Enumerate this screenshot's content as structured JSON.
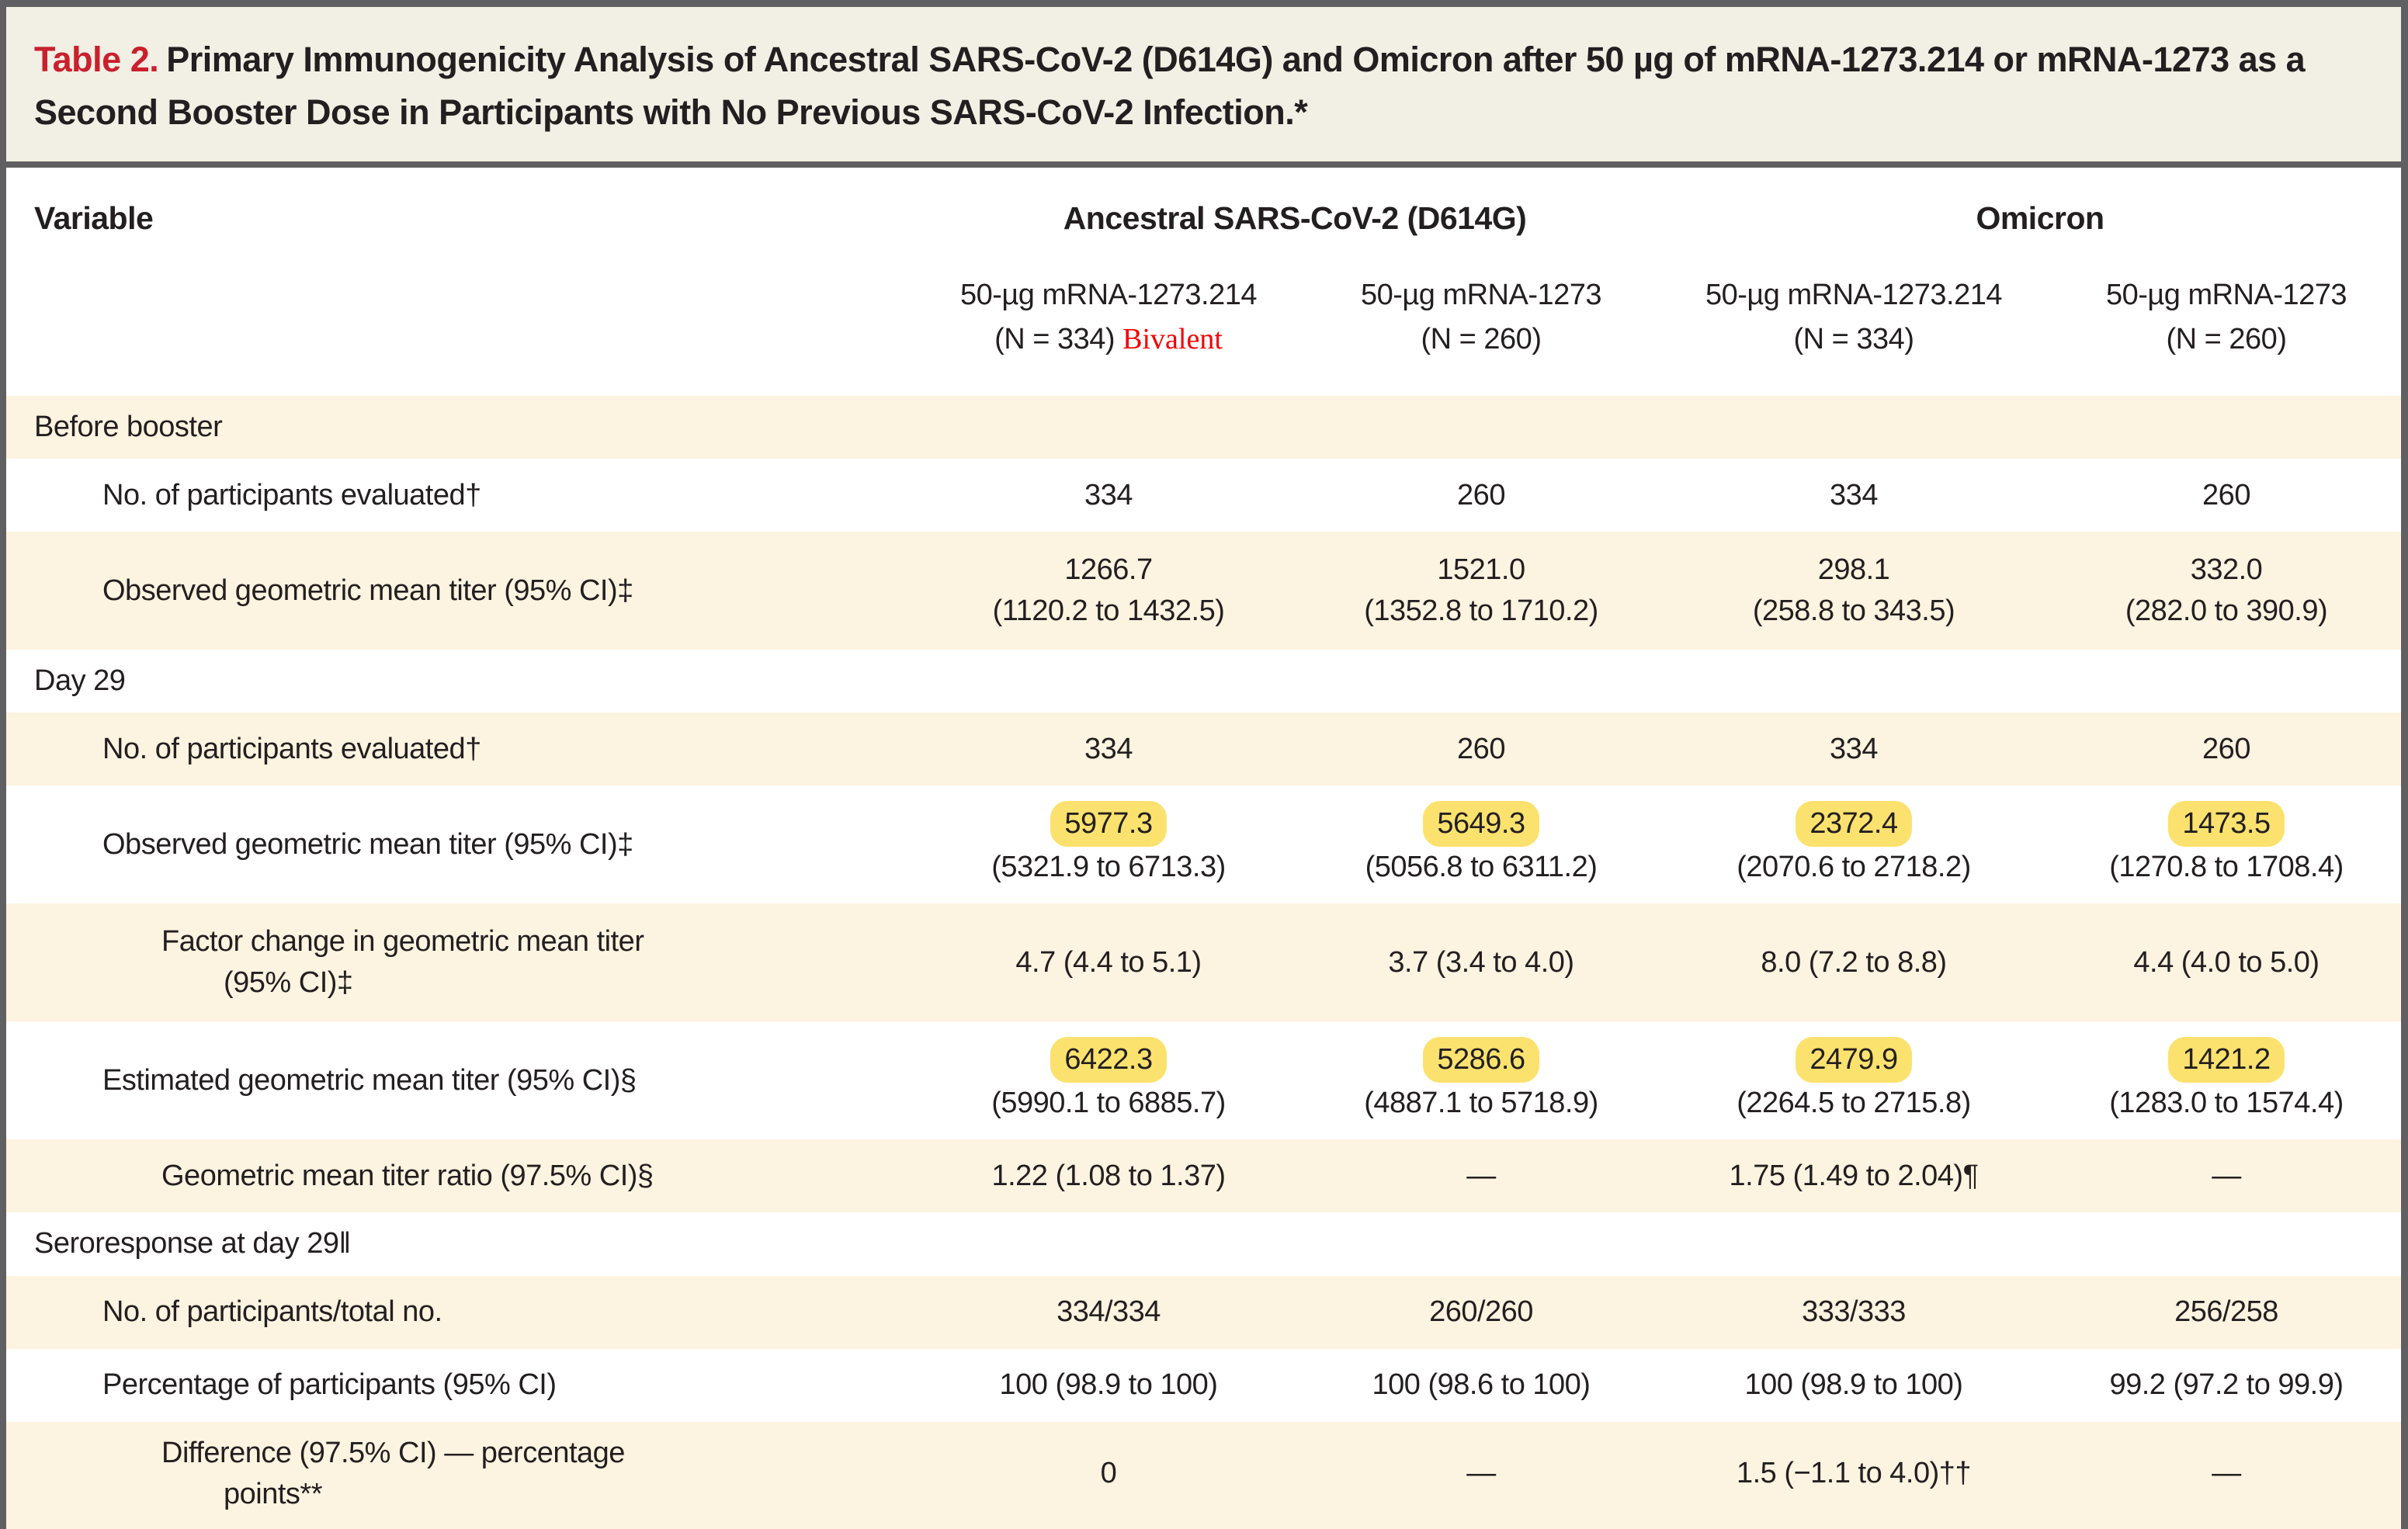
{
  "title": {
    "label": "Table 2.",
    "text": "Primary Immunogenicity Analysis of Ancestral SARS-CoV-2 (D614G) and Omicron after 50 µg of mRNA-1273.214 or mRNA-1273 as a Second Booster Dose in Participants with No Previous SARS-CoV-2 Infection.*"
  },
  "header": {
    "variable": "Variable",
    "groups": [
      {
        "label": "Ancestral SARS-CoV-2 (D614G)",
        "span": 2
      },
      {
        "label": "Omicron",
        "span": 2
      }
    ],
    "columns": [
      {
        "line1": "50-µg mRNA-1273.214",
        "line2": "(N = 334)",
        "annotation": "Bivalent"
      },
      {
        "line1": "50-µg mRNA-1273",
        "line2": "(N = 260)",
        "annotation": ""
      },
      {
        "line1": "50-µg mRNA-1273.214",
        "line2": "(N = 334)",
        "annotation": ""
      },
      {
        "line1": "50-µg mRNA-1273",
        "line2": "(N = 260)",
        "annotation": ""
      }
    ]
  },
  "rows": [
    {
      "type": "section",
      "label_lines": [
        "Before booster"
      ],
      "cells": []
    },
    {
      "type": "data",
      "indent": 1,
      "label_lines": [
        "No. of participants evaluated†"
      ],
      "cells": [
        {
          "main": "334"
        },
        {
          "main": "260"
        },
        {
          "main": "334"
        },
        {
          "main": "260"
        }
      ]
    },
    {
      "type": "data",
      "indent": 1,
      "label_lines": [
        "Observed geometric mean titer (95% CI)‡"
      ],
      "cells": [
        {
          "main": "1266.7",
          "sub": "(1120.2 to 1432.5)"
        },
        {
          "main": "1521.0",
          "sub": "(1352.8 to 1710.2)"
        },
        {
          "main": "298.1",
          "sub": "(258.8 to 343.5)"
        },
        {
          "main": "332.0",
          "sub": "(282.0 to 390.9)"
        }
      ]
    },
    {
      "type": "section",
      "label_lines": [
        "Day 29"
      ],
      "cells": []
    },
    {
      "type": "data",
      "indent": 1,
      "label_lines": [
        "No. of participants evaluated†"
      ],
      "cells": [
        {
          "main": "334"
        },
        {
          "main": "260"
        },
        {
          "main": "334"
        },
        {
          "main": "260"
        }
      ]
    },
    {
      "type": "data",
      "indent": 1,
      "label_lines": [
        "Observed geometric mean titer (95% CI)‡"
      ],
      "cells": [
        {
          "main": "5977.3",
          "highlight": true,
          "sub": "(5321.9 to 6713.3)"
        },
        {
          "main": "5649.3",
          "highlight": true,
          "sub": "(5056.8 to 6311.2)"
        },
        {
          "main": "2372.4",
          "highlight": true,
          "sub": "(2070.6 to 2718.2)"
        },
        {
          "main": "1473.5",
          "highlight": true,
          "sub": "(1270.8 to 1708.4)"
        }
      ]
    },
    {
      "type": "data",
      "indent": 2,
      "label_lines": [
        "Factor change in geometric mean titer",
        "(95% CI)‡"
      ],
      "cells": [
        {
          "main": "4.7 (4.4 to 5.1)"
        },
        {
          "main": "3.7 (3.4 to 4.0)"
        },
        {
          "main": "8.0 (7.2 to 8.8)"
        },
        {
          "main": "4.4 (4.0 to 5.0)"
        }
      ]
    },
    {
      "type": "data",
      "indent": 1,
      "label_lines": [
        "Estimated geometric mean titer (95% CI)§"
      ],
      "cells": [
        {
          "main": "6422.3",
          "highlight": true,
          "sub": "(5990.1 to 6885.7)"
        },
        {
          "main": "5286.6",
          "highlight": true,
          "sub": "(4887.1 to 5718.9)"
        },
        {
          "main": "2479.9",
          "highlight": true,
          "sub": "(2264.5 to 2715.8)"
        },
        {
          "main": "1421.2",
          "highlight": true,
          "sub": "(1283.0 to 1574.4)"
        }
      ]
    },
    {
      "type": "data",
      "indent": 2,
      "label_lines": [
        "Geometric mean titer ratio (97.5% CI)§"
      ],
      "cells": [
        {
          "main": "1.22 (1.08 to 1.37)"
        },
        {
          "main": "—"
        },
        {
          "main": "1.75 (1.49 to 2.04)¶"
        },
        {
          "main": "—"
        }
      ]
    },
    {
      "type": "section",
      "label_lines": [
        "Seroresponse at day 29‖"
      ],
      "cells": []
    },
    {
      "type": "data",
      "indent": 1,
      "label_lines": [
        "No. of participants/total no."
      ],
      "cells": [
        {
          "main": "334/334"
        },
        {
          "main": "260/260"
        },
        {
          "main": "333/333"
        },
        {
          "main": "256/258"
        }
      ]
    },
    {
      "type": "data",
      "indent": 1,
      "label_lines": [
        "Percentage of participants (95% CI)"
      ],
      "cells": [
        {
          "main": "100 (98.9 to 100)"
        },
        {
          "main": "100 (98.6 to 100)"
        },
        {
          "main": "100 (98.9 to 100)"
        },
        {
          "main": "99.2 (97.2 to 99.9)"
        }
      ]
    },
    {
      "type": "data",
      "indent": 2,
      "label_lines": [
        "Difference (97.5% CI) — percentage",
        "points**"
      ],
      "cells": [
        {
          "main": "0"
        },
        {
          "main": "—"
        },
        {
          "main": "1.5 (−1.1 to 4.0)††"
        },
        {
          "main": "—"
        }
      ]
    }
  ],
  "colors": {
    "title_band": "#f2efe4",
    "stripe_beige": "#fcf3e0",
    "highlight_yellow": "#fbe26e",
    "table_number_red": "#c9202e",
    "bivalent_red": "#f40000",
    "border_gray": "#606062",
    "text": "#231f20"
  }
}
